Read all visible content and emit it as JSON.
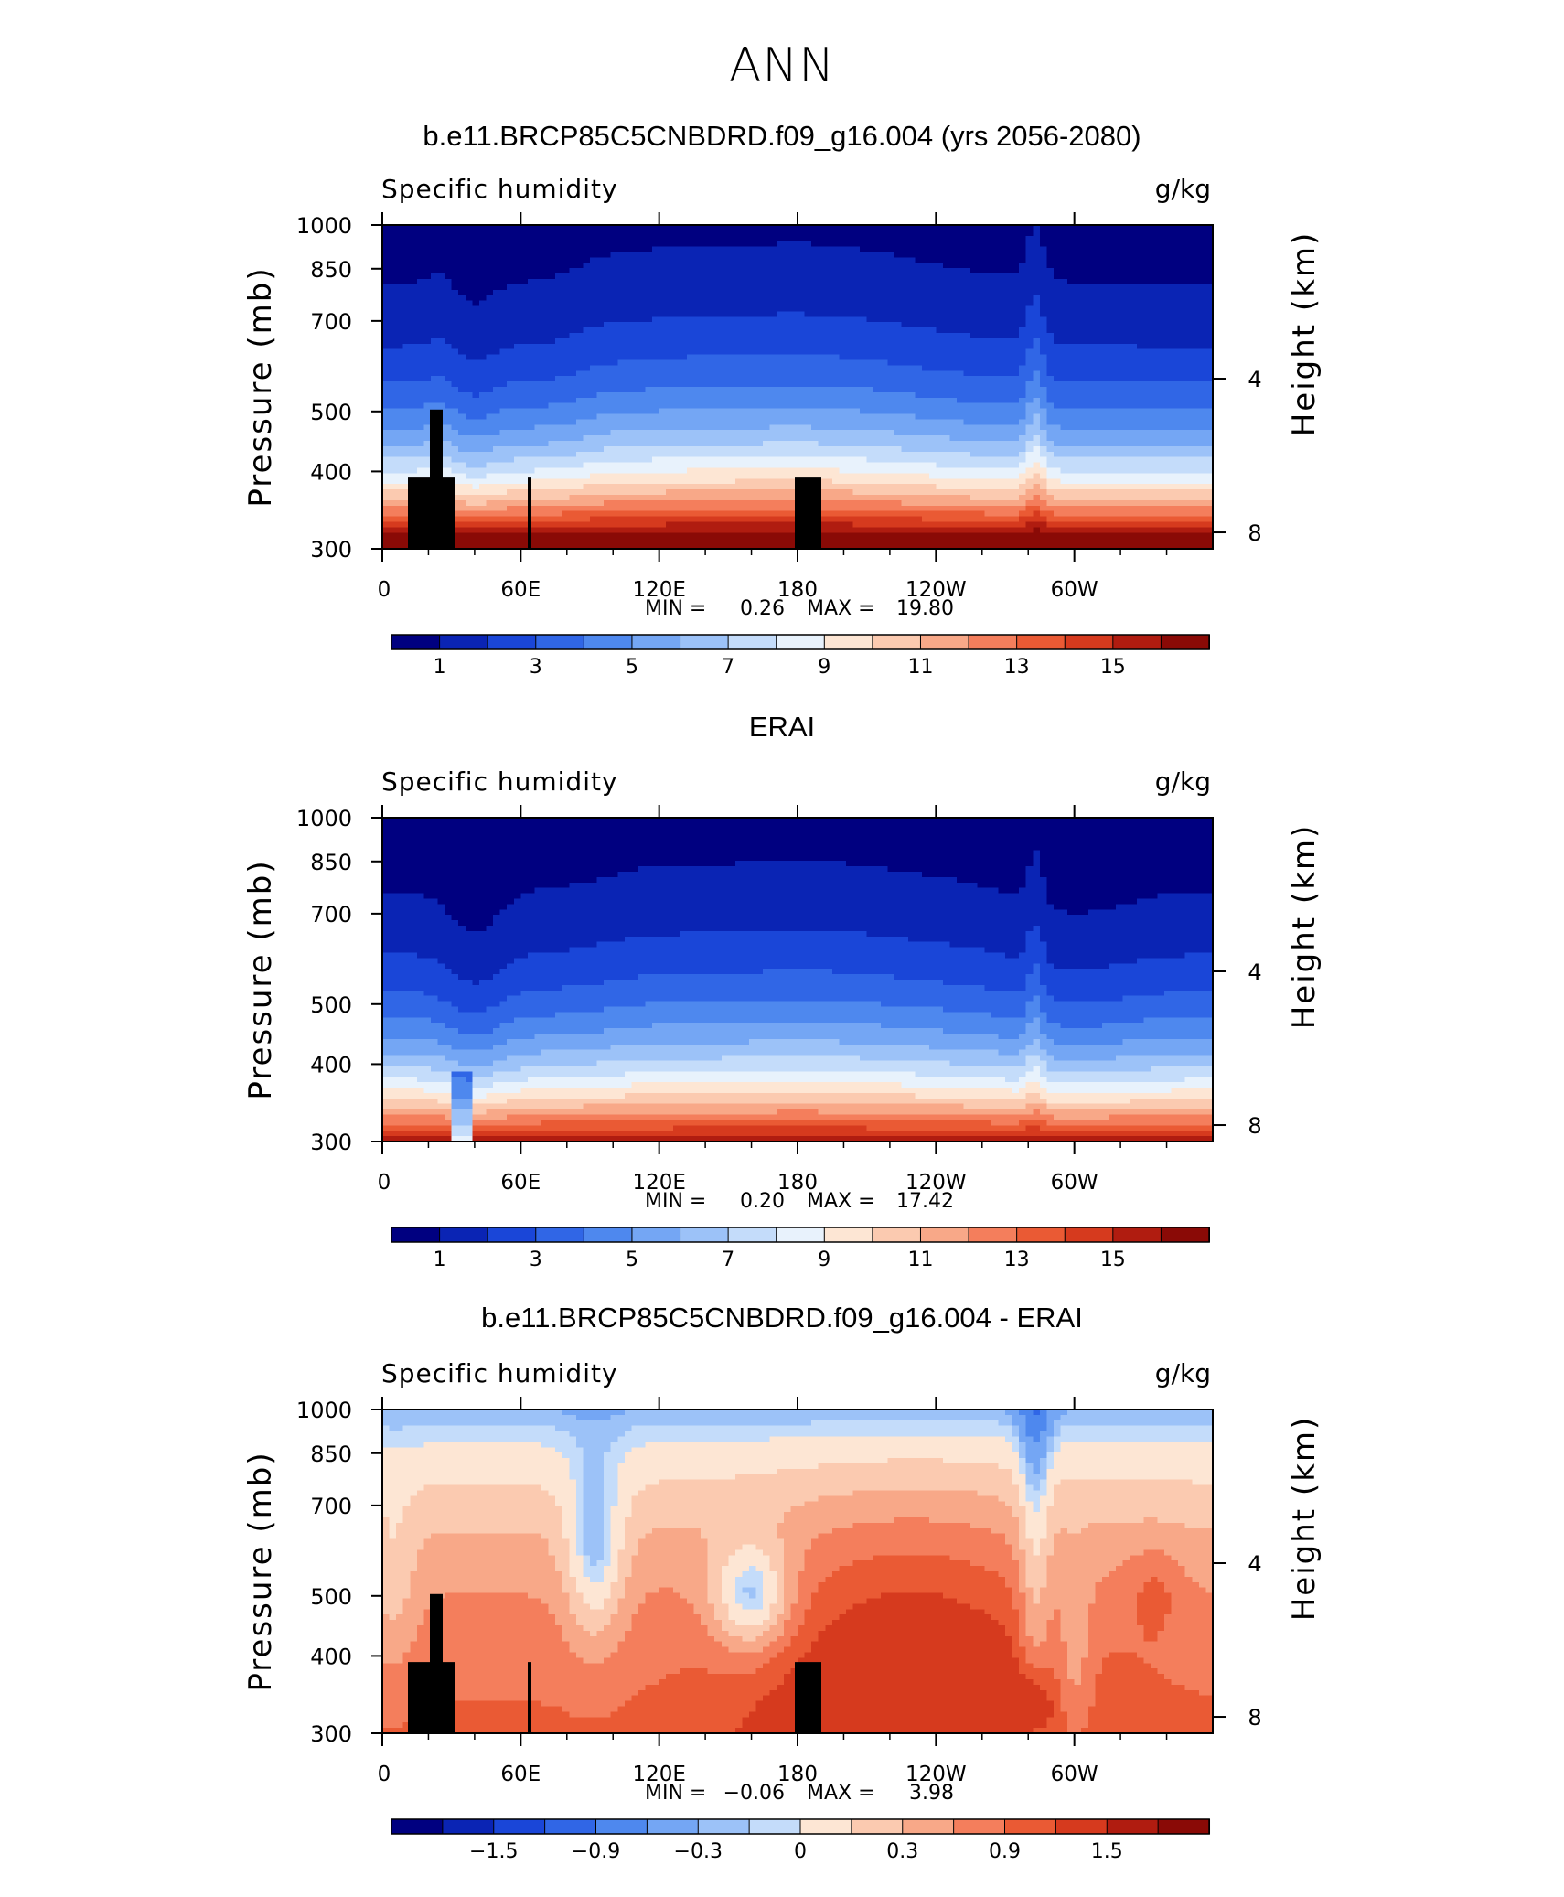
{
  "page": {
    "title": "ANN"
  },
  "colors": {
    "absolute_scale": [
      "#000080",
      "#0a24b4",
      "#1a46d8",
      "#3066e6",
      "#4e88ee",
      "#74a6f4",
      "#9cc2f8",
      "#c4dcfa",
      "#e8f2fc",
      "#fde6d4",
      "#fbcab0",
      "#f8a888",
      "#f47e5c",
      "#ea5a34",
      "#d63a1e",
      "#b01c10",
      "#8a0a06"
    ],
    "difference_scale": [
      "#000080",
      "#0a24b4",
      "#1a46d8",
      "#3066e6",
      "#4e88ee",
      "#74a6f4",
      "#9cc2f8",
      "#c4dcfa",
      "#fde6d4",
      "#fbcab0",
      "#f8a888",
      "#f47e5c",
      "#ea5a34",
      "#d63a1e",
      "#b01c10",
      "#8a0a06"
    ],
    "topography": "#000000"
  },
  "panels": [
    {
      "title": "b.e11.BRCP85C5CNBDRD.f09_g16.004 (yrs 2056-2080)",
      "left_label": "Specific humidity",
      "right_label": "g/kg",
      "stats": {
        "min_label": "MIN =",
        "min": "0.26",
        "max_label": "MAX =",
        "max": "19.80"
      },
      "colorbar_labels": [
        "1",
        "3",
        "5",
        "7",
        "9",
        "11",
        "13",
        "15"
      ]
    },
    {
      "title": "ERAI",
      "left_label": "Specific humidity",
      "right_label": "g/kg",
      "stats": {
        "min_label": "MIN =",
        "min": "0.20",
        "max_label": "MAX =",
        "max": "17.42"
      },
      "colorbar_labels": [
        "1",
        "3",
        "5",
        "7",
        "9",
        "11",
        "13",
        "15"
      ]
    },
    {
      "title": "b.e11.BRCP85C5CNBDRD.f09_g16.004 - ERAI",
      "left_label": "Specific humidity",
      "right_label": "g/kg",
      "stats": {
        "min_label": "MIN =",
        "min": "−0.06",
        "max_label": "MAX =",
        "max": "3.98"
      },
      "colorbar_labels": [
        "−1.5",
        "−0.9",
        "−0.3",
        "0",
        "0.3",
        "0.9",
        "1.5"
      ]
    }
  ],
  "chart_data": [
    {
      "type": "heatmap",
      "title": "b.e11.BRCP85C5CNBDRD.f09_g16.004 (yrs 2056-2080)",
      "variable": "Specific humidity",
      "units": "g/kg",
      "ylabel": "Pressure (mb)",
      "ylabel_right": "Height (km)",
      "xticks": [
        "0",
        "60E",
        "120E",
        "180",
        "120W",
        "60W"
      ],
      "yticks": [
        "300",
        "400",
        "500",
        "700",
        "850",
        "1000"
      ],
      "yticks_right": [
        "8",
        "4"
      ],
      "ylim": [
        1000,
        300
      ],
      "y_scale": "log",
      "x_range_deg": [
        0,
        360
      ],
      "contour_levels": [
        0,
        1,
        2,
        3,
        4,
        5,
        6,
        7,
        8,
        9,
        10,
        11,
        12,
        13,
        14,
        15,
        16
      ],
      "min": 0.26,
      "max": 19.8
    },
    {
      "type": "heatmap",
      "title": "ERAI",
      "variable": "Specific humidity",
      "units": "g/kg",
      "ylabel": "Pressure (mb)",
      "ylabel_right": "Height (km)",
      "xticks": [
        "0",
        "60E",
        "120E",
        "180",
        "120W",
        "60W"
      ],
      "yticks": [
        "300",
        "400",
        "500",
        "700",
        "850",
        "1000"
      ],
      "yticks_right": [
        "8",
        "4"
      ],
      "ylim": [
        1000,
        300
      ],
      "y_scale": "log",
      "x_range_deg": [
        0,
        360
      ],
      "contour_levels": [
        0,
        1,
        2,
        3,
        4,
        5,
        6,
        7,
        8,
        9,
        10,
        11,
        12,
        13,
        14,
        15,
        16
      ],
      "min": 0.2,
      "max": 17.42
    },
    {
      "type": "heatmap",
      "title": "b.e11.BRCP85C5CNBDRD.f09_g16.004 - ERAI",
      "variable": "Specific humidity",
      "units": "g/kg",
      "ylabel": "Pressure (mb)",
      "ylabel_right": "Height (km)",
      "xticks": [
        "0",
        "60E",
        "120E",
        "180",
        "120W",
        "60W"
      ],
      "yticks": [
        "300",
        "400",
        "500",
        "700",
        "850",
        "1000"
      ],
      "yticks_right": [
        "8",
        "4"
      ],
      "ylim": [
        1000,
        300
      ],
      "y_scale": "log",
      "x_range_deg": [
        0,
        360
      ],
      "contour_levels": [
        -1.8,
        -1.5,
        -1.2,
        -0.9,
        -0.6,
        -0.3,
        0,
        0.15,
        0.3,
        0.6,
        0.9,
        1.2,
        1.5,
        1.8
      ],
      "min": -0.06,
      "max": 3.98
    }
  ]
}
